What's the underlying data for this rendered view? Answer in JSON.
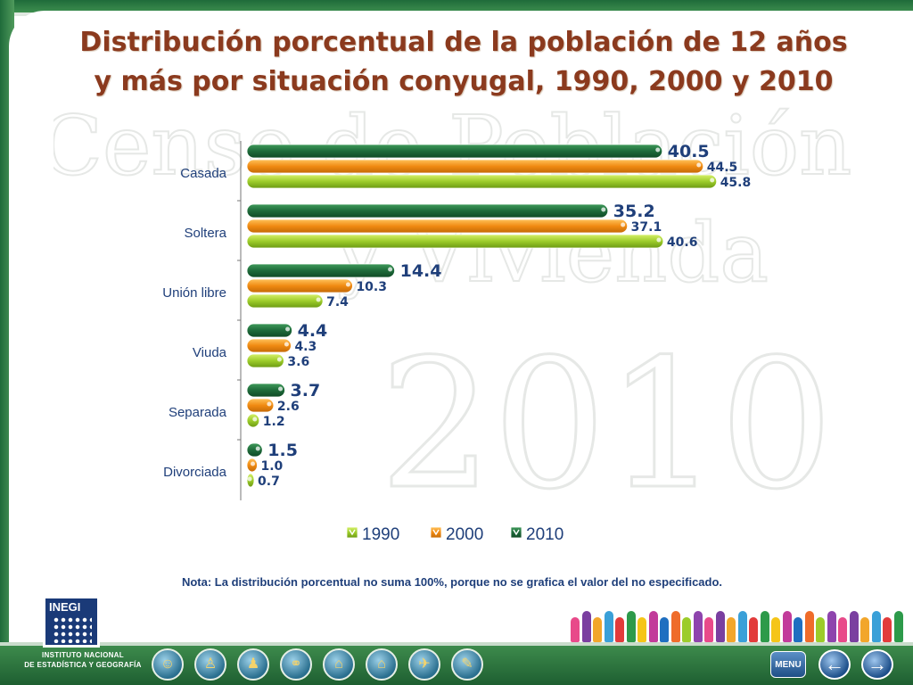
{
  "title_line1": "Distribución porcentual de la población de 12 años",
  "title_line2": "y más por situación conyugal, 1990, 2000 y 2010",
  "watermark": {
    "line1": "Censo de Población",
    "line2": "y Vivienda",
    "line3": "2010"
  },
  "chart_data": {
    "type": "bar",
    "orientation": "horizontal",
    "categories": [
      "Casada",
      "Soltera",
      "Unión libre",
      "Viuda",
      "Separada",
      "Divorciada"
    ],
    "series": [
      {
        "name": "2010",
        "color": "#1e6a3a",
        "values": [
          40.5,
          35.2,
          14.4,
          4.4,
          3.7,
          1.5
        ]
      },
      {
        "name": "2000",
        "color": "#f08a12",
        "values": [
          44.5,
          37.1,
          10.3,
          4.3,
          2.6,
          1.0
        ]
      },
      {
        "name": "1990",
        "color": "#9ccc2a",
        "values": [
          45.8,
          40.6,
          7.4,
          3.6,
          1.2,
          0.7
        ]
      }
    ],
    "labels": [
      [
        "40.5",
        "44.5",
        "45.8"
      ],
      [
        "35.2",
        "37.1",
        "40.6"
      ],
      [
        "14.4",
        "10.3",
        "7.4"
      ],
      [
        "4.4",
        "4.3",
        "3.6"
      ],
      [
        "3.7",
        "2.6",
        "1.2"
      ],
      [
        "1.5",
        "1.0",
        "0.7"
      ]
    ],
    "legend": {
      "position": "bottom",
      "order": [
        "1990",
        "2000",
        "2010"
      ]
    },
    "xlim": [
      0,
      50
    ],
    "grid": false
  },
  "note": "Nota: La distribución porcentual no suma 100%, porque no se grafica el valor del no especificado.",
  "footer": {
    "logo_text": "INEGI",
    "institution_line1": "INSTITUTO NACIONAL",
    "institution_line2": "DE ESTADÍSTICA Y GEOGRAFÍA",
    "menu_label": "MENU",
    "nav_icons": [
      "people-icon",
      "person-icon",
      "family-icon",
      "couple-icon",
      "house-icon",
      "home-icon",
      "map-icon",
      "document-icon"
    ],
    "prev_icon": "arrow-left-icon",
    "next_icon": "arrow-right-icon"
  }
}
